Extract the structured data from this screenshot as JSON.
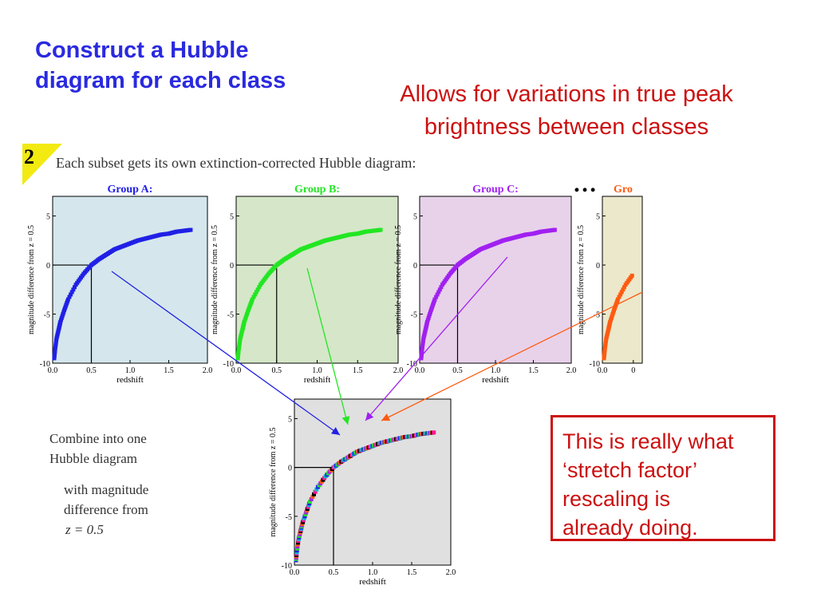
{
  "title_lines": [
    "Construct a Hubble",
    "diagram for each class"
  ],
  "subtitle_lines": [
    "Allows for variations in true peak",
    "brightness between classes"
  ],
  "step": {
    "number": "2",
    "caption": "Each subset gets its own extinction-corrected Hubble diagram:"
  },
  "ellipsis": "…",
  "combine_text": {
    "line1": "Combine into one",
    "line2": "Hubble diagram",
    "line3": "with magnitude",
    "line4": "difference from",
    "line5": "z = 0.5"
  },
  "callout_lines": [
    "This is really what",
    "‘stretch factor’",
    "rescaling is",
    "already doing."
  ],
  "colors": {
    "title": "#2a2ae0",
    "subtitle": "#cc1010",
    "group_a": "#2020e6",
    "group_b": "#22e622",
    "group_c": "#a020f0",
    "group_d": "#ff5a10",
    "badge": "#f2ea10"
  },
  "chart_data": [
    {
      "type": "scatter",
      "title": "Group A:",
      "xlabel": "redshift",
      "ylabel": "magnitude difference from z = 0.5",
      "xlim": [
        0.0,
        2.0
      ],
      "ylim": [
        -10,
        7
      ],
      "xticks": [
        "0.0",
        "0.5",
        "1.0",
        "1.5",
        "2.0"
      ],
      "yticks": [
        "5",
        "0",
        "-5",
        "-10"
      ],
      "color": "#2020e6",
      "background": "#d5e7ec",
      "reference_point": [
        0.5,
        0
      ],
      "series": [
        {
          "x": [
            0.02,
            0.03,
            0.05,
            0.08,
            0.1,
            0.15,
            0.2,
            0.3,
            0.4,
            0.5,
            0.6,
            0.7,
            0.8,
            0.9,
            1.0,
            1.1,
            1.2,
            1.3,
            1.4,
            1.5,
            1.6,
            1.7,
            1.8
          ],
          "y": [
            -9.5,
            -8.7,
            -7.5,
            -6.5,
            -5.8,
            -4.6,
            -3.5,
            -2.0,
            -0.9,
            0.0,
            0.6,
            1.1,
            1.6,
            1.9,
            2.2,
            2.5,
            2.7,
            2.9,
            3.1,
            3.2,
            3.4,
            3.5,
            3.6
          ]
        }
      ]
    },
    {
      "type": "scatter",
      "title": "Group B:",
      "xlabel": "redshift",
      "ylabel": "magnitude difference from z = 0.5",
      "xlim": [
        0.0,
        2.0
      ],
      "ylim": [
        -10,
        7
      ],
      "xticks": [
        "0.0",
        "0.5",
        "1.0",
        "1.5",
        "2.0"
      ],
      "yticks": [
        "5",
        "0",
        "-5",
        "-10"
      ],
      "color": "#22e622",
      "background": "#d5e7c8",
      "reference_point": [
        0.5,
        0
      ],
      "series": [
        {
          "x": [
            0.02,
            0.03,
            0.05,
            0.08,
            0.1,
            0.15,
            0.2,
            0.3,
            0.4,
            0.5,
            0.6,
            0.7,
            0.8,
            0.9,
            1.0,
            1.1,
            1.2,
            1.3,
            1.4,
            1.5,
            1.6,
            1.7,
            1.8
          ],
          "y": [
            -9.5,
            -8.7,
            -7.5,
            -6.5,
            -5.8,
            -4.6,
            -3.5,
            -2.0,
            -0.9,
            0.0,
            0.6,
            1.1,
            1.6,
            1.9,
            2.2,
            2.5,
            2.7,
            2.9,
            3.1,
            3.2,
            3.4,
            3.5,
            3.6
          ]
        }
      ]
    },
    {
      "type": "scatter",
      "title": "Group C:",
      "xlabel": "redshift",
      "ylabel": "magnitude difference from z = 0.5",
      "xlim": [
        0.0,
        2.0
      ],
      "ylim": [
        -10,
        7
      ],
      "xticks": [
        "0.0",
        "0.5",
        "1.0",
        "1.5",
        "2.0"
      ],
      "yticks": [
        "5",
        "0",
        "-5",
        "-10"
      ],
      "color": "#a020f0",
      "background": "#e8d2ea",
      "reference_point": [
        0.5,
        0
      ],
      "series": [
        {
          "x": [
            0.02,
            0.03,
            0.05,
            0.08,
            0.1,
            0.15,
            0.2,
            0.3,
            0.4,
            0.5,
            0.6,
            0.7,
            0.8,
            0.9,
            1.0,
            1.1,
            1.2,
            1.3,
            1.4,
            1.5,
            1.6,
            1.7,
            1.8
          ],
          "y": [
            -9.5,
            -8.7,
            -7.5,
            -6.5,
            -5.8,
            -4.6,
            -3.5,
            -2.0,
            -0.9,
            0.0,
            0.6,
            1.1,
            1.6,
            1.9,
            2.2,
            2.5,
            2.7,
            2.9,
            3.1,
            3.2,
            3.4,
            3.5,
            3.6
          ]
        }
      ]
    },
    {
      "type": "scatter",
      "title": "Gro",
      "xlabel": "",
      "ylabel": "magnitude difference from z = 0.5",
      "xlim": [
        0.0,
        0.4
      ],
      "ylim": [
        -10,
        7
      ],
      "xticks": [
        "0.0",
        "0"
      ],
      "yticks": [
        "5",
        "0",
        "-5",
        "-10"
      ],
      "color": "#ff5a10",
      "background": "#ece8cc",
      "reference_point": [
        0.5,
        0
      ],
      "series": [
        {
          "x": [
            0.02,
            0.03,
            0.05,
            0.08,
            0.1,
            0.15,
            0.2,
            0.3,
            0.4
          ],
          "y": [
            -9.5,
            -8.7,
            -7.5,
            -6.5,
            -5.8,
            -4.6,
            -3.5,
            -2.0,
            -0.9
          ]
        }
      ]
    },
    {
      "type": "scatter",
      "title": "",
      "xlabel": "redshift",
      "ylabel": "magnitude difference from z = 0.5",
      "xlim": [
        0.0,
        2.0
      ],
      "ylim": [
        -10,
        7
      ],
      "xticks": [
        "0.0",
        "0.5",
        "1.0",
        "1.5",
        "2.0"
      ],
      "yticks": [
        "5",
        "0",
        "-5",
        "-10"
      ],
      "color": "mixed",
      "background": "#e0e0e0",
      "reference_point": [
        0.5,
        0
      ],
      "series": [
        {
          "x": [
            0.02,
            0.03,
            0.05,
            0.08,
            0.1,
            0.15,
            0.2,
            0.3,
            0.4,
            0.5,
            0.6,
            0.7,
            0.8,
            0.9,
            1.0,
            1.1,
            1.2,
            1.3,
            1.4,
            1.5,
            1.6,
            1.7,
            1.8
          ],
          "y": [
            -9.5,
            -8.7,
            -7.5,
            -6.5,
            -5.8,
            -4.6,
            -3.5,
            -2.0,
            -0.9,
            0.0,
            0.6,
            1.1,
            1.6,
            1.9,
            2.2,
            2.5,
            2.7,
            2.9,
            3.1,
            3.2,
            3.4,
            3.5,
            3.6
          ]
        }
      ]
    }
  ]
}
